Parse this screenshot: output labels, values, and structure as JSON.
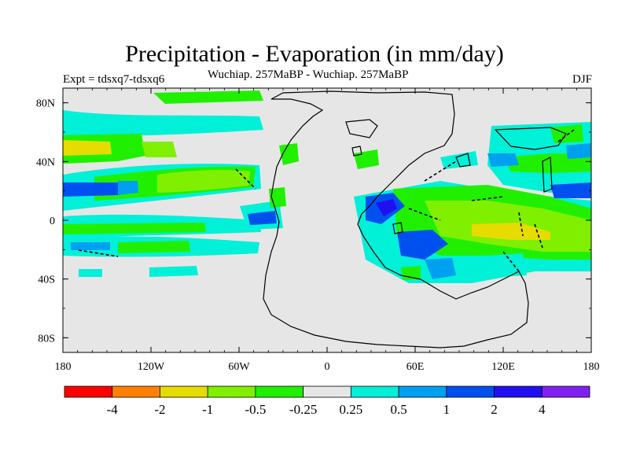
{
  "title": "Precipitation - Evaporation (in mm/day)",
  "subtitle_center": "Wuchiap. 257MaBP - Wuchiap. 257MaBP",
  "subtitle_left": "Expt = tdsxq7-tdsxq6",
  "subtitle_right": "DJF",
  "map": {
    "x_tick_labels": [
      "180",
      "120W",
      "60W",
      "0",
      "60E",
      "120E",
      "180"
    ],
    "y_tick_labels": [
      "80N",
      "40N",
      "0",
      "40S",
      "80S"
    ],
    "background_color": "#e6e6e6"
  },
  "colorbar": {
    "colors": [
      "#ff0000",
      "#ff8000",
      "#e6dc00",
      "#80f000",
      "#20f000",
      "#e6e6e6",
      "#00f0d8",
      "#00a0f0",
      "#0050f0",
      "#2010f0",
      "#8020f0"
    ],
    "labels": [
      "-4",
      "-2",
      "-1",
      "-0.5",
      "-0.25",
      "0.25",
      "0.5",
      "1",
      "2",
      "4"
    ]
  },
  "chart_data": {
    "type": "heatmap",
    "title": "Precipitation - Evaporation (in mm/day)",
    "subtitle": "Wuchiap. 257MaBP - Wuchiap. 257MaBP",
    "season": "DJF",
    "experiment": "Expt = tdsxq7-tdsxq6",
    "x_range": [
      -180,
      180
    ],
    "y_range": [
      -90,
      90
    ],
    "color_levels": [
      -4,
      -2,
      -1,
      -0.5,
      -0.25,
      0.25,
      0.5,
      1,
      2,
      4
    ],
    "features": [
      {
        "lon": -170,
        "lat": 50,
        "value": -1.5
      },
      {
        "lon": -130,
        "lat": 22,
        "value": 1.5
      },
      {
        "lon": -150,
        "lat": 12,
        "value": -0.3
      },
      {
        "lon": -160,
        "lat": -5,
        "value": -0.6
      },
      {
        "lon": -140,
        "lat": -18,
        "value": 0.5
      },
      {
        "lon": -35,
        "lat": 0,
        "value": 2
      },
      {
        "lon": 40,
        "lat": 5,
        "value": 2
      },
      {
        "lon": 65,
        "lat": 0,
        "value": -1
      },
      {
        "lon": 110,
        "lat": -10,
        "value": -1.5
      },
      {
        "lon": 60,
        "lat": -15,
        "value": 2
      },
      {
        "lon": 150,
        "lat": 25,
        "value": 1.5
      },
      {
        "lon": 130,
        "lat": 50,
        "value": 0.5
      },
      {
        "lon": 170,
        "lat": 40,
        "value": -0.4
      }
    ]
  }
}
